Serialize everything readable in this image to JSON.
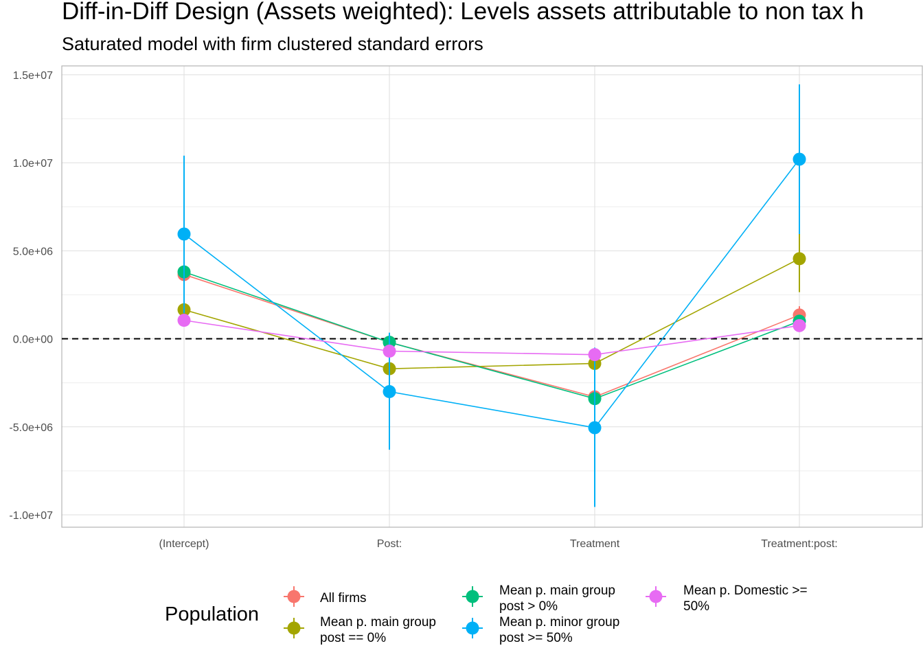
{
  "chart_data": {
    "type": "line",
    "title": "Diff-in-Diff Design (Assets weighted): Levels assets attributable to non tax h",
    "subtitle": "Saturated model with firm clustered standard errors",
    "xlabel": "",
    "ylabel": "",
    "categories": [
      "(Intercept)",
      "Post:",
      "Treatment",
      "Treatment:post:"
    ],
    "ylim": [
      -10700000,
      15500000
    ],
    "y_ticks": [
      -10000000,
      -5000000,
      0,
      5000000,
      10000000,
      15000000
    ],
    "y_tick_labels": [
      "-1.0e+07",
      "-5.0e+06",
      "0.0e+00",
      "5.0e+06",
      "1.0e+07",
      "1.5e+07"
    ],
    "reference_line": 0,
    "grid": true,
    "legend": {
      "title": "Population",
      "placement": "bottom",
      "entries": [
        {
          "series": 0,
          "lines": [
            "All firms"
          ]
        },
        {
          "series": 1,
          "lines": [
            "Mean p. main group",
            "post == 0%"
          ]
        },
        {
          "series": 2,
          "lines": [
            "Mean p. main group",
            "post > 0%"
          ]
        },
        {
          "series": 3,
          "lines": [
            "Mean p. minor group",
            "post >= 50%"
          ]
        },
        {
          "series": 4,
          "lines": [
            "Mean p. Domestic >=",
            "50%"
          ]
        }
      ]
    },
    "series": [
      {
        "name": "All firms",
        "color": "#F8766D",
        "values": [
          3650000,
          -200000,
          -3300000,
          1350000
        ],
        "lower": [
          3650000,
          -200000,
          -3300000,
          900000
        ],
        "upper": [
          3650000,
          -200000,
          -3300000,
          1850000
        ]
      },
      {
        "name": "Mean p. main group post == 0%",
        "color": "#A3A500",
        "values": [
          1650000,
          -1700000,
          -1400000,
          4550000
        ],
        "lower": [
          1650000,
          -1700000,
          -1400000,
          2650000
        ],
        "upper": [
          1650000,
          -1700000,
          -1400000,
          5950000
        ]
      },
      {
        "name": "Mean p. main group post > 0%",
        "color": "#00BF7D",
        "values": [
          3800000,
          -200000,
          -3400000,
          1000000
        ],
        "lower": [
          3800000,
          -200000,
          -3400000,
          1000000
        ],
        "upper": [
          3800000,
          -200000,
          -3400000,
          1000000
        ]
      },
      {
        "name": "Mean p. minor group post >= 50%",
        "color": "#00B0F6",
        "values": [
          5950000,
          -3000000,
          -5050000,
          10200000
        ],
        "lower": [
          1450000,
          -6300000,
          -9550000,
          5950000
        ],
        "upper": [
          10400000,
          350000,
          -500000,
          14450000
        ]
      },
      {
        "name": "Mean p. Domestic >= 50%",
        "color": "#E76BF3",
        "values": [
          1050000,
          -700000,
          -900000,
          750000
        ],
        "lower": [
          1050000,
          -700000,
          -900000,
          750000
        ],
        "upper": [
          1050000,
          -700000,
          -900000,
          750000
        ]
      }
    ]
  }
}
